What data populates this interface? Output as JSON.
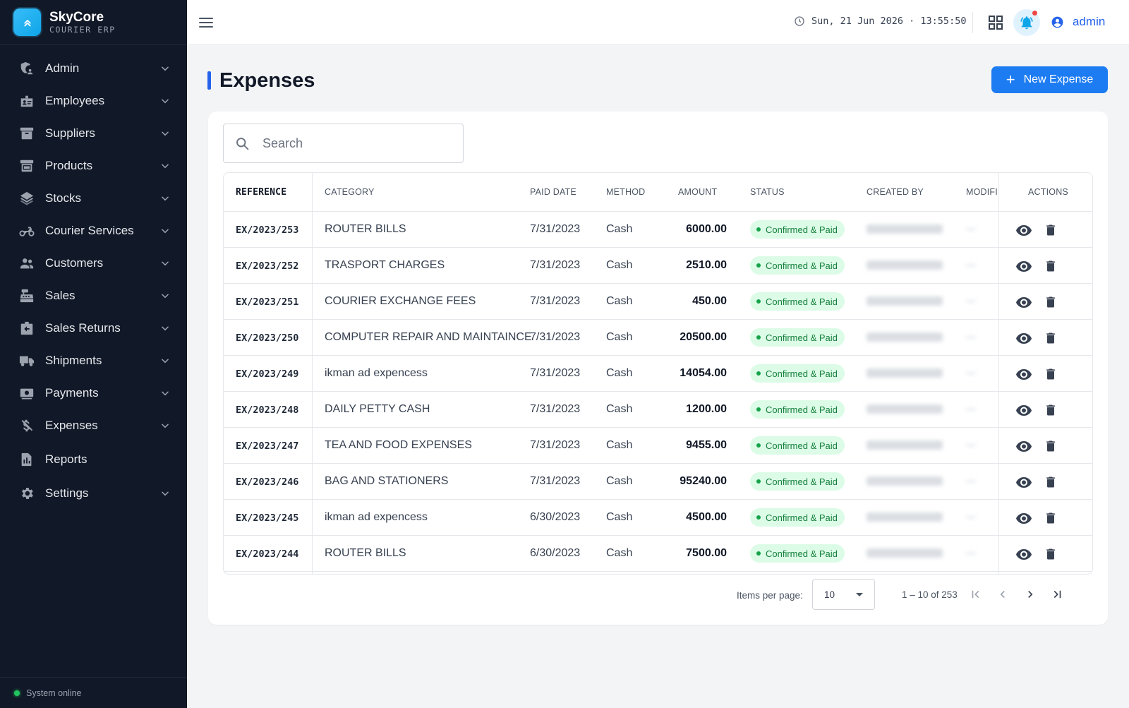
{
  "brand": {
    "name": "SkyCore",
    "subtitle": "COURIER ERP"
  },
  "sidebar": {
    "items": [
      {
        "label": "Admin",
        "icon": "admin-icon",
        "chevron": true
      },
      {
        "label": "Employees",
        "icon": "badge-icon",
        "chevron": true
      },
      {
        "label": "Suppliers",
        "icon": "archive-icon",
        "chevron": true
      },
      {
        "label": "Products",
        "icon": "box-icon",
        "chevron": true
      },
      {
        "label": "Stocks",
        "icon": "layers-icon",
        "chevron": true
      },
      {
        "label": "Courier Services",
        "icon": "motorcycle-icon",
        "chevron": true
      },
      {
        "label": "Customers",
        "icon": "people-icon",
        "chevron": true
      },
      {
        "label": "Sales",
        "icon": "register-icon",
        "chevron": true
      },
      {
        "label": "Sales Returns",
        "icon": "return-icon",
        "chevron": true
      },
      {
        "label": "Shipments",
        "icon": "truck-icon",
        "chevron": true
      },
      {
        "label": "Payments",
        "icon": "payment-icon",
        "chevron": true
      },
      {
        "label": "Expenses",
        "icon": "money-off-icon",
        "chevron": true
      },
      {
        "label": "Reports",
        "icon": "report-icon",
        "chevron": false
      },
      {
        "label": "Settings",
        "icon": "gear-icon",
        "chevron": true
      }
    ],
    "footer_status": "System online"
  },
  "topbar": {
    "datetime": "Sun, 21 Jun 2026 · 13:55:50",
    "user": "admin"
  },
  "page": {
    "title": "Expenses",
    "new_button": "New Expense"
  },
  "search": {
    "placeholder": "Search"
  },
  "table": {
    "columns": {
      "reference": "REFERENCE",
      "category": "CATEGORY",
      "paid_date": "PAID DATE",
      "method": "METHOD",
      "amount": "AMOUNT",
      "status": "STATUS",
      "created_by": "CREATED BY",
      "modified": "MODIFIE",
      "actions": "ACTIONS"
    },
    "rows": [
      {
        "reference": "EX/2023/253",
        "category": "ROUTER BILLS",
        "paid_date": "7/31/2023",
        "method": "Cash",
        "amount": "6000.00",
        "status": "Confirmed & Paid"
      },
      {
        "reference": "EX/2023/252",
        "category": "TRASPORT CHARGES",
        "paid_date": "7/31/2023",
        "method": "Cash",
        "amount": "2510.00",
        "status": "Confirmed & Paid"
      },
      {
        "reference": "EX/2023/251",
        "category": "COURIER EXCHANGE FEES",
        "paid_date": "7/31/2023",
        "method": "Cash",
        "amount": "450.00",
        "status": "Confirmed & Paid"
      },
      {
        "reference": "EX/2023/250",
        "category": "COMPUTER REPAIR AND MAINTAINCE",
        "paid_date": "7/31/2023",
        "method": "Cash",
        "amount": "20500.00",
        "status": "Confirmed & Paid"
      },
      {
        "reference": "EX/2023/249",
        "category": "ikman ad expencess",
        "paid_date": "7/31/2023",
        "method": "Cash",
        "amount": "14054.00",
        "status": "Confirmed & Paid"
      },
      {
        "reference": "EX/2023/248",
        "category": "DAILY PETTY CASH",
        "paid_date": "7/31/2023",
        "method": "Cash",
        "amount": "1200.00",
        "status": "Confirmed & Paid"
      },
      {
        "reference": "EX/2023/247",
        "category": "TEA AND FOOD EXPENSES",
        "paid_date": "7/31/2023",
        "method": "Cash",
        "amount": "9455.00",
        "status": "Confirmed & Paid"
      },
      {
        "reference": "EX/2023/246",
        "category": "BAG AND STATIONERS",
        "paid_date": "7/31/2023",
        "method": "Cash",
        "amount": "95240.00",
        "status": "Confirmed & Paid"
      },
      {
        "reference": "EX/2023/245",
        "category": "ikman ad expencess",
        "paid_date": "6/30/2023",
        "method": "Cash",
        "amount": "4500.00",
        "status": "Confirmed & Paid"
      },
      {
        "reference": "EX/2023/244",
        "category": "ROUTER BILLS",
        "paid_date": "6/30/2023",
        "method": "Cash",
        "amount": "7500.00",
        "status": "Confirmed & Paid"
      }
    ]
  },
  "pagination": {
    "items_per_page_label": "Items per page:",
    "items_per_page": "10",
    "range": "1 – 10 of 253"
  },
  "colors": {
    "sidebar_bg": "#111827",
    "accent": "#1d7cf2",
    "status_bg": "#dcfce7",
    "status_text": "#15803d"
  }
}
